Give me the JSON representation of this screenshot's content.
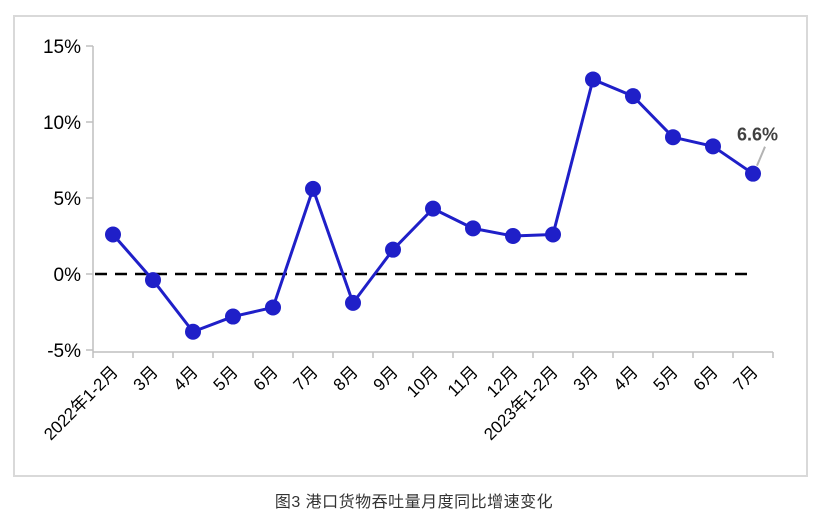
{
  "figure": {
    "caption": "图3 港口货物吞吐量月度同比增速变化"
  },
  "chart_data": {
    "type": "line",
    "title": "图3 港口货物吞吐量月度同比增速变化",
    "categories": [
      "2022年1-2月",
      "3月",
      "4月",
      "5月",
      "6月",
      "7月",
      "8月",
      "9月",
      "10月",
      "11月",
      "12月",
      "2023年1-2月",
      "3月",
      "4月",
      "5月",
      "6月",
      "7月"
    ],
    "series": [
      {
        "name": "港口货物吞吐量月度同比增速",
        "values": [
          2.6,
          -0.4,
          -3.8,
          -2.8,
          -2.2,
          5.6,
          -1.9,
          1.6,
          4.3,
          3.0,
          2.5,
          2.6,
          12.8,
          11.7,
          9.0,
          8.4,
          6.6
        ]
      }
    ],
    "xlabel": "",
    "ylabel": "",
    "ylim": [
      -5,
      15
    ],
    "yticks": [
      15,
      10,
      5,
      0,
      -5
    ],
    "ytick_suffix": "%",
    "grid": false,
    "legend": "none",
    "zero_line_style": "dashed",
    "annotations": [
      {
        "text": "6.6%",
        "target_index": 16
      }
    ],
    "colors": {
      "line": "#1F1FC8",
      "marker": "#1F1FC8",
      "zero_line": "#000000",
      "axis": "#BFBFBF",
      "tick_label": "#000000",
      "annotation_text": "#404040",
      "leader_line": "#B3B3B3",
      "frame_border": "#D9D9D9",
      "caption_text": "#333333"
    }
  }
}
